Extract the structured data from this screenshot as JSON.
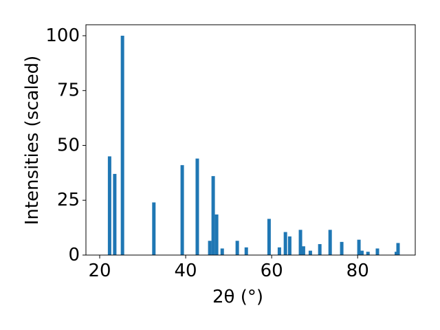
{
  "chart_data": {
    "type": "bar",
    "xlabel": "2θ (°)",
    "ylabel": "Intensities (scaled)",
    "x": [
      22.3,
      23.5,
      25.3,
      32.6,
      39.2,
      42.7,
      45.6,
      46.4,
      47.2,
      48.5,
      52.0,
      54.1,
      59.4,
      61.8,
      63.2,
      64.2,
      66.7,
      67.4,
      69.0,
      71.2,
      73.6,
      76.3,
      80.3,
      81.0,
      82.4,
      84.6,
      89.0,
      89.4
    ],
    "values": [
      45,
      37,
      100,
      24,
      41,
      44,
      6.5,
      36,
      18.5,
      3,
      6.5,
      3.5,
      16.5,
      3.5,
      10.5,
      8.5,
      11.5,
      4,
      2,
      5,
      11.5,
      6,
      7,
      2,
      1.5,
      3,
      1.5,
      5.5
    ],
    "color": "#1f77b4",
    "xlim": [
      16.8,
      93.4
    ],
    "ylim": [
      0,
      105
    ],
    "xticks": [
      20,
      40,
      60,
      80
    ],
    "yticks": [
      0,
      25,
      50,
      75,
      100
    ],
    "grid": false
  }
}
